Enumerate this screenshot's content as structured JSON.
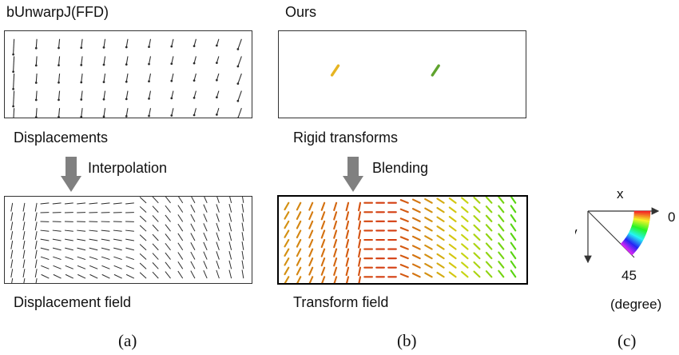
{
  "panels": {
    "a": {
      "title": "bUnwarpJ(FFD)",
      "top_label": "Displacements",
      "arrow_label": "Interpolation",
      "bottom_label": "Displacement field",
      "caption": "(a)"
    },
    "b": {
      "title": "Ours",
      "top_label": "Rigid transforms",
      "arrow_label": "Blending",
      "bottom_label": "Transform field",
      "caption": "(b)"
    },
    "c": {
      "x_label": "x",
      "y_label": "y",
      "angle_start": "0",
      "angle_end": "45",
      "unit": "(degree)",
      "caption": "(c)"
    }
  },
  "colors": {
    "vector_dark": "#2b2b2b",
    "flow_arrow": "#808080",
    "rigid_yellow": "#e6b422",
    "rigid_green": "#5fa32e"
  }
}
